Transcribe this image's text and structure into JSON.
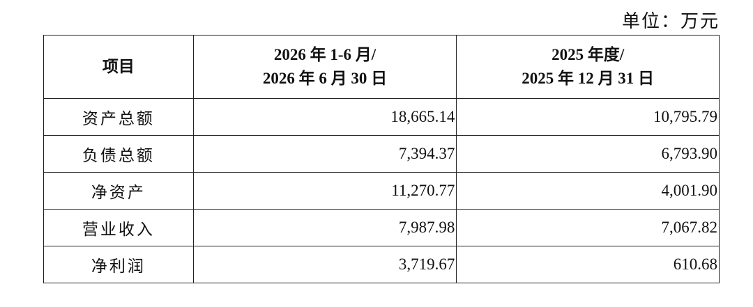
{
  "unit": "单位：万元",
  "table": {
    "header": [
      [
        "项目"
      ],
      [
        "2026 年 1-6 月/",
        "2026 年 6 月 30 日"
      ],
      [
        "2025 年度/",
        "2025 年 12 月 31 日"
      ]
    ],
    "rows": [
      [
        "资产总额",
        "18,665.14",
        "10,795.79"
      ],
      [
        "负债总额",
        "7,394.37",
        "6,793.90"
      ],
      [
        "净资产",
        "11,270.77",
        "4,001.90"
      ],
      [
        "营业收入",
        "7,987.98",
        "7,067.82"
      ],
      [
        "净利润",
        "3,719.67",
        "610.68"
      ]
    ]
  }
}
